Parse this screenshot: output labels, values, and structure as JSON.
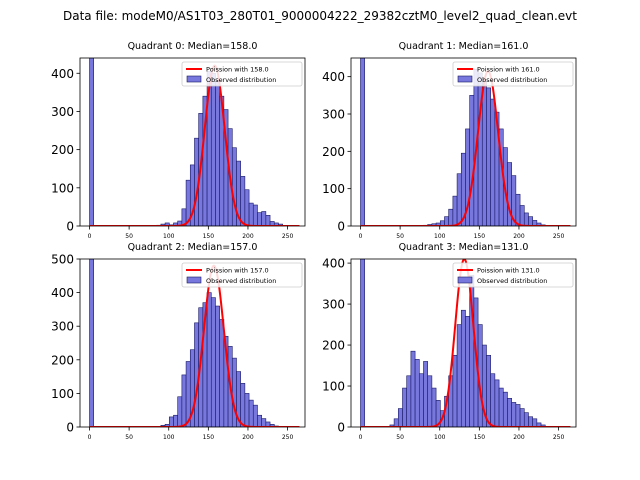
{
  "suptitle": "Data file: modeM0/AS1T03_280T01_9000004222_29382cztM0_level2_quad_clean.evt",
  "colors": {
    "bar_fill": "#7777dd",
    "bar_edge": "#1a1a66",
    "poisson": "#ff0000"
  },
  "chart_data": [
    {
      "type": "bar",
      "title": "Quadrant 0: Median=158.0",
      "xlabel": "",
      "ylabel": "",
      "xlim": [
        -12,
        272
      ],
      "ylim": [
        0,
        440
      ],
      "xticks": [
        0,
        50,
        100,
        150,
        200,
        250
      ],
      "yticks": [
        0,
        100,
        200,
        300,
        400
      ],
      "legend": [
        "Poission with 158.0",
        "Observed distribution"
      ],
      "legend_position": "top-right",
      "bins": {
        "start": 0,
        "width": 5.3,
        "counts": [
          440,
          0,
          0,
          0,
          0,
          0,
          0,
          0,
          0,
          0,
          0,
          0,
          0,
          0,
          0,
          0,
          2,
          5,
          8,
          3,
          8,
          13,
          45,
          120,
          160,
          230,
          295,
          340,
          405,
          400,
          380,
          340,
          305,
          255,
          205,
          170,
          130,
          95,
          60,
          55,
          35,
          38,
          28,
          12,
          8,
          5,
          0,
          0,
          0,
          0
        ]
      },
      "poisson_mean": 158.0,
      "poisson_peak": 420
    },
    {
      "type": "bar",
      "title": "Quadrant 1: Median=161.0",
      "xlabel": "",
      "ylabel": "",
      "xlim": [
        -12,
        272
      ],
      "ylim": [
        0,
        450
      ],
      "xticks": [
        0,
        50,
        100,
        150,
        200,
        250
      ],
      "yticks": [
        0,
        100,
        200,
        300,
        400
      ],
      "legend": [
        "Poission with 161.0",
        "Observed distribution"
      ],
      "legend_position": "top-right",
      "bins": {
        "start": 0,
        "width": 5.3,
        "counts": [
          450,
          0,
          0,
          0,
          0,
          0,
          0,
          0,
          0,
          0,
          0,
          0,
          0,
          0,
          0,
          2,
          4,
          6,
          8,
          14,
          25,
          45,
          80,
          140,
          195,
          260,
          350,
          420,
          410,
          390,
          370,
          340,
          305,
          260,
          210,
          170,
          135,
          85,
          55,
          35,
          25,
          15,
          8,
          3,
          0,
          0,
          0,
          0,
          0,
          0
        ]
      },
      "poisson_mean": 161.0,
      "poisson_peak": 415
    },
    {
      "type": "bar",
      "title": "Quadrant 2: Median=157.0",
      "xlabel": "",
      "ylabel": "",
      "xlim": [
        -12,
        272
      ],
      "ylim": [
        0,
        500
      ],
      "xticks": [
        0,
        50,
        100,
        150,
        200,
        250
      ],
      "yticks": [
        0,
        100,
        200,
        300,
        400,
        500
      ],
      "legend": [
        "Poission with 157.0",
        "Observed distribution"
      ],
      "legend_position": "top-right",
      "bins": {
        "start": 0,
        "width": 5.3,
        "counts": [
          500,
          0,
          0,
          0,
          0,
          0,
          0,
          0,
          0,
          0,
          0,
          0,
          0,
          0,
          0,
          0,
          2,
          5,
          8,
          30,
          35,
          90,
          155,
          195,
          230,
          310,
          355,
          370,
          400,
          385,
          360,
          320,
          270,
          240,
          205,
          165,
          130,
          100,
          80,
          65,
          35,
          25,
          15,
          8,
          3,
          0,
          0,
          0,
          0,
          0
        ]
      },
      "poisson_mean": 157.0,
      "poisson_peak": 480
    },
    {
      "type": "bar",
      "title": "Quadrant 3: Median=131.0",
      "xlabel": "",
      "ylabel": "",
      "xlim": [
        -12,
        272
      ],
      "ylim": [
        0,
        410
      ],
      "xticks": [
        0,
        50,
        100,
        150,
        200,
        250
      ],
      "yticks": [
        0,
        100,
        200,
        300,
        400
      ],
      "legend": [
        "Poission with 131.0",
        "Observed distribution"
      ],
      "legend_position": "top-right",
      "bins": {
        "start": 0,
        "width": 5.3,
        "counts": [
          410,
          0,
          0,
          0,
          0,
          0,
          0,
          5,
          20,
          45,
          95,
          125,
          185,
          165,
          130,
          160,
          125,
          95,
          65,
          40,
          75,
          125,
          175,
          250,
          285,
          270,
          370,
          315,
          250,
          200,
          175,
          130,
          115,
          95,
          85,
          70,
          60,
          55,
          45,
          35,
          25,
          20,
          10,
          5,
          0,
          0,
          0,
          0,
          0,
          0
        ]
      },
      "poisson_mean": 131.0,
      "poisson_peak": 410
    }
  ]
}
